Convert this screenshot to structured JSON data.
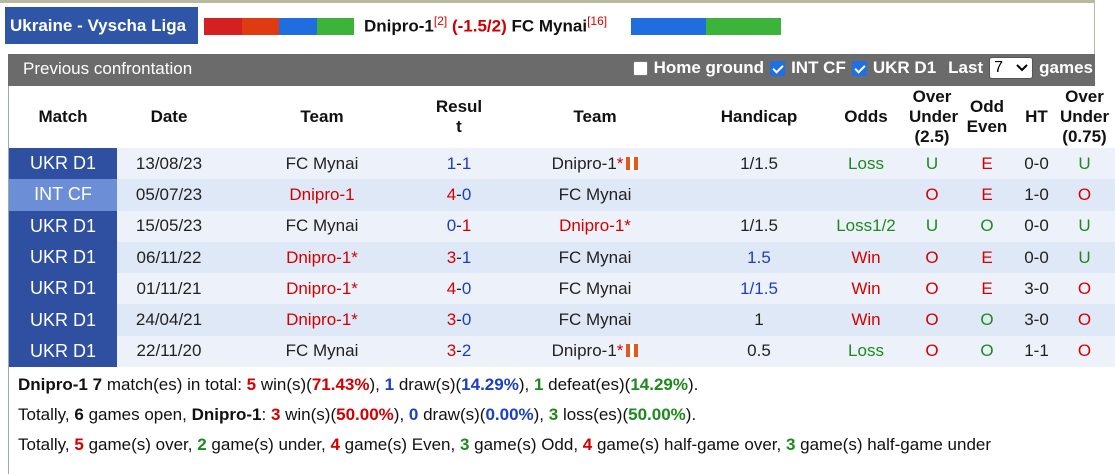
{
  "header": {
    "league": "Ukraine - Vyscha Liga",
    "home_team": "Dnipro-1",
    "home_rank": "[2]",
    "handicap": "(-1.5/2)",
    "away_team": "FC Mynai",
    "away_rank": "[16]",
    "home_bar_colors": [
      "#d42020",
      "#e03a10",
      "#1e6ee0",
      "#3cb43c"
    ],
    "away_bar_colors": [
      "#1e6ee0",
      "#3cb43c"
    ]
  },
  "filter_bar": {
    "title": "Previous confrontation",
    "home_ground_label": "Home ground",
    "home_ground_checked": false,
    "int_cf_label": "INT CF",
    "int_cf_checked": true,
    "ukr_d1_label": "UKR D1",
    "ukr_d1_checked": true,
    "last_label": "Last",
    "last_value": "7",
    "games_label": "games"
  },
  "table": {
    "headers": {
      "match": "Match",
      "date": "Date",
      "team1": "Team",
      "result_a": "Resul",
      "result_b": "t",
      "team2": "Team",
      "handicap": "Handicap",
      "odds": "Odds",
      "ou_a": "Over",
      "ou_b": "Under",
      "ou_c": "(2.5)",
      "oe_a": "Odd",
      "oe_b": "Even",
      "ht": "HT",
      "ou2_a": "Over",
      "ou2_b": "Under",
      "ou2_c": "(0.75)"
    },
    "rows": [
      {
        "match": "UKR D1",
        "date": "13/08/23",
        "team1": "FC Mynai",
        "home_goals": "1",
        "away_goals": "1",
        "team2": "Dnipro-1",
        "handicap": "1/1.5",
        "odds": "Loss",
        "ou": "U",
        "oe": "E",
        "ht": "0-0",
        "ou2": "U"
      },
      {
        "match": "INT CF",
        "date": "05/07/23",
        "team1": "Dnipro-1",
        "home_goals": "4",
        "away_goals": "0",
        "team2": "FC Mynai",
        "handicap": "",
        "odds": "",
        "ou": "O",
        "oe": "E",
        "ht": "1-0",
        "ou2": "O"
      },
      {
        "match": "UKR D1",
        "date": "15/05/23",
        "team1": "FC Mynai",
        "home_goals": "0",
        "away_goals": "1",
        "team2": "Dnipro-1",
        "handicap": "1/1.5",
        "odds": "Loss1/2",
        "ou": "U",
        "oe": "O",
        "ht": "0-0",
        "ou2": "U"
      },
      {
        "match": "UKR D1",
        "date": "06/11/22",
        "team1": "Dnipro-1",
        "home_goals": "3",
        "away_goals": "1",
        "team2": "FC Mynai",
        "handicap": "1.5",
        "odds": "Win",
        "ou": "O",
        "oe": "E",
        "ht": "0-0",
        "ou2": "U"
      },
      {
        "match": "UKR D1",
        "date": "01/11/21",
        "team1": "Dnipro-1",
        "home_goals": "4",
        "away_goals": "0",
        "team2": "FC Mynai",
        "handicap": "1/1.5",
        "odds": "Win",
        "ou": "O",
        "oe": "E",
        "ht": "3-0",
        "ou2": "O"
      },
      {
        "match": "UKR D1",
        "date": "24/04/21",
        "team1": "Dnipro-1",
        "home_goals": "3",
        "away_goals": "0",
        "team2": "FC Mynai",
        "handicap": "1",
        "odds": "Win",
        "ou": "O",
        "oe": "O",
        "ht": "3-0",
        "ou2": "O"
      },
      {
        "match": "UKR D1",
        "date": "22/11/20",
        "team1": "FC Mynai",
        "home_goals": "3",
        "away_goals": "2",
        "team2": "Dnipro-1",
        "handicap": "0.5",
        "odds": "Loss",
        "ou": "O",
        "oe": "O",
        "ht": "1-1",
        "ou2": "O"
      }
    ]
  },
  "summary": {
    "line1": {
      "team": "Dnipro-1",
      "n": "7",
      "t1": " match(es) in total: ",
      "wins": "5",
      "wins_lbl": " win(s)(",
      "wins_pct": "71.43%",
      "t2": "), ",
      "draws": "1",
      "draws_lbl": " draw(s)(",
      "draws_pct": "14.29%",
      "t3": "), ",
      "defeats": "1",
      "defeats_lbl": " defeat(es)(",
      "defeats_pct": "14.29%",
      "t4": ")."
    },
    "line2": {
      "t0": "Totally, ",
      "open": "6",
      "t1": " games open, ",
      "team": "Dnipro-1",
      "t2": ": ",
      "wins": "3",
      "wins_lbl": " win(s)(",
      "wins_pct": "50.00%",
      "t3": "), ",
      "draws": "0",
      "draws_lbl": " draw(s)(",
      "draws_pct": "0.00%",
      "t4": "), ",
      "loss": "3",
      "loss_lbl": " loss(es)(",
      "loss_pct": "50.00%",
      "t5": ")."
    },
    "line3": {
      "t0": "Totally, ",
      "over": "5",
      "over_lbl": " game(s) over, ",
      "under": "2",
      "under_lbl": " game(s) under, ",
      "even": "4",
      "even_lbl": " game(s) Even, ",
      "odd": "3",
      "odd_lbl": " game(s) Odd, ",
      "hover": "4",
      "hover_lbl": " game(s) half-game over, ",
      "hunder": "3",
      "hunder_lbl": " game(s) half-game under"
    }
  }
}
